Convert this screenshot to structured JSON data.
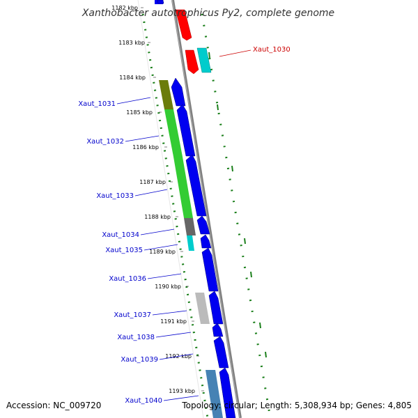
{
  "title": "Xanthobacter autotrophicus Py2, complete genome",
  "footer": {
    "accession": "Accession: NC_009720",
    "topology": "Topology: circular; Length: 5,308,934 bp; Genes: 4,805"
  },
  "colors": {
    "forward_cds": "#0000f0",
    "reverse_rna": "#ff0000",
    "cog_green": "#33cc33",
    "label_blue": "#0000cc",
    "label_red": "#cc0000",
    "gc_dots": "#1a7f1a"
  },
  "kbp_ticks": [
    "1182 kbp",
    "1183 kbp",
    "1184 kbp",
    "1185 kbp",
    "1186 kbp",
    "1187 kbp",
    "1188 kbp",
    "1189 kbp",
    "1190 kbp",
    "1191 kbp",
    "1192 kbp",
    "1193 kbp"
  ],
  "gene_labels": [
    "Xaut_1030",
    "Xaut_1031",
    "Xaut_1032",
    "Xaut_1033",
    "Xaut_1034",
    "Xaut_1035",
    "Xaut_1036",
    "Xaut_1037",
    "Xaut_1038",
    "Xaut_1039",
    "Xaut_1040"
  ]
}
